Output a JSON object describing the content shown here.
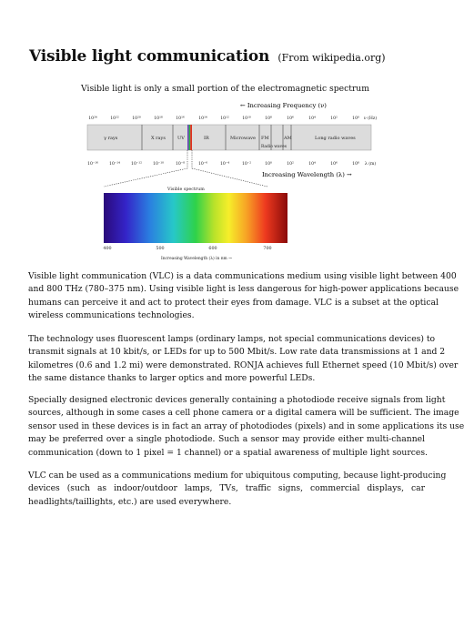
{
  "header": {
    "title": "Visible light communication",
    "source": "(From wikipedia.org)"
  },
  "figure": {
    "caption": "Visible light is only a small portion of the electromagnetic spectrum",
    "freq_label": "← Increasing Frequency (ν)",
    "freq_ticks": [
      "10²⁴",
      "10²²",
      "10²⁰",
      "10¹⁸",
      "10¹⁶",
      "10¹⁴",
      "10¹²",
      "10¹⁰",
      "10⁸",
      "10⁶",
      "10⁴",
      "10²",
      "10⁰",
      "ν (Hz)"
    ],
    "bands": [
      "γ rays",
      "X rays",
      "UV",
      "IR",
      "Microwave",
      "FM",
      "AM",
      "Long radio waves",
      "Radio waves"
    ],
    "wave_ticks": [
      "10⁻¹⁶",
      "10⁻¹⁴",
      "10⁻¹²",
      "10⁻¹⁰",
      "10⁻⁸",
      "10⁻⁶",
      "10⁻⁴",
      "10⁻²",
      "10⁰",
      "10²",
      "10⁴",
      "10⁶",
      "10⁸",
      "λ (m)"
    ],
    "wave_label": "Increasing Wavelength (λ) →",
    "visible_label": "Visible spectrum",
    "nm_ticks": [
      "400",
      "500",
      "600",
      "700"
    ],
    "nm_label": "Increasing Wavelength (λ) in nm →"
  },
  "paragraphs": [
    [
      "Visible light communication (VLC) is a data communications medium using visible light between 400",
      "and 800 THz (780–375 nm). Using visible light is less dangerous for high-power applications because",
      "humans can perceive it and act to protect their eyes from damage. VLC is a subset at the optical",
      "wireless communications technologies."
    ],
    [
      "The technology uses fluorescent lamps (ordinary lamps, not special communications devices) to",
      "transmit signals at 10 kbit/s, or LEDs for up to 500 Mbit/s. Low rate data transmissions at 1 and 2",
      "kilometres (0.6 and 1.2 mi) were demonstrated. RONJA achieves full Ethernet speed (10 Mbit/s) over",
      "the same distance thanks to larger optics and more powerful LEDs."
    ],
    [
      "Specially designed electronic devices generally containing a photodiode receive signals from light",
      "sources, although in some cases a cell phone camera or a digital camera will be sufficient. The image",
      "sensor used in these devices is in fact an array of photodiodes (pixels) and in some applications its use",
      "may be preferred over a single photodiode. Such a sensor may provide either multi-channel",
      "communication (down to 1 pixel = 1 channel) or a spatial awareness of multiple light sources."
    ],
    [
      "VLC can be used as a communications medium for ubiquitous computing, because light-producing",
      "devices (such as indoor/outdoor lamps, TVs, traffic signs, commercial displays, car",
      "headlights/taillights, etc.) are used everywhere."
    ]
  ]
}
